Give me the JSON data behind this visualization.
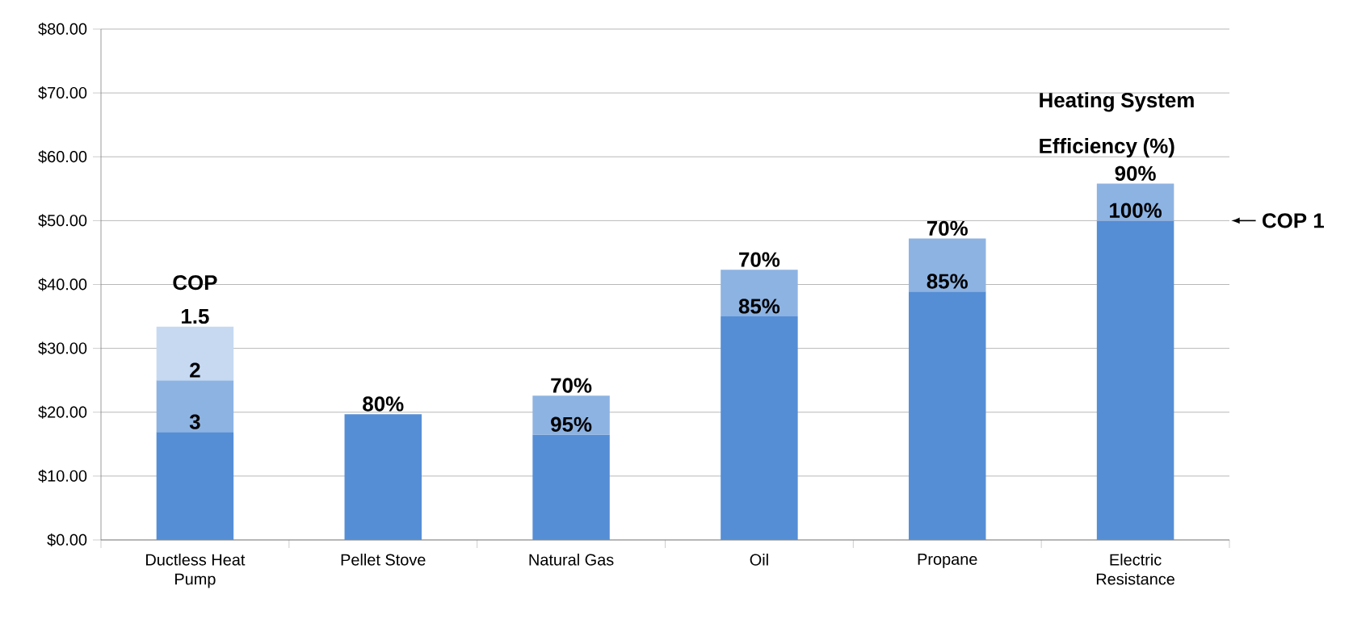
{
  "chart_data": {
    "type": "bar",
    "stacked": true,
    "categories": [
      "Ductless Heat Pump",
      "Pellet Stove",
      "Natural Gas",
      "Oil",
      "Propane",
      "Electric Resistance"
    ],
    "series": [
      {
        "color": "#558ed5",
        "values": [
          16.9,
          19.7,
          16.5,
          35.0,
          38.9,
          50.0
        ]
      },
      {
        "color": "#8db3e2",
        "values": [
          8.1,
          null,
          6.1,
          7.3,
          8.3,
          5.8
        ]
      },
      {
        "color": "#c6d9f1",
        "values": [
          8.4,
          null,
          null,
          null,
          null,
          null
        ]
      }
    ],
    "ylim": [
      0,
      80
    ],
    "yticks": [
      {
        "value": 0,
        "label": "$0.00"
      },
      {
        "value": 10,
        "label": "$10.00"
      },
      {
        "value": 20,
        "label": "$20.00"
      },
      {
        "value": 30,
        "label": "$30.00"
      },
      {
        "value": 40,
        "label": "$40.00"
      },
      {
        "value": 50,
        "label": "$50.00"
      },
      {
        "value": 60,
        "label": "$60.00"
      },
      {
        "value": 70,
        "label": "$70.00"
      },
      {
        "value": 80,
        "label": "$80.00"
      }
    ],
    "grid": "y",
    "annotations": [
      "COP",
      "Heating System Efficiency (%)",
      "COP 1",
      {
        "text": "3",
        "x": "Ductless Heat Pump",
        "y": 16.9
      },
      {
        "text": "2",
        "x": "Ductless Heat Pump",
        "y": 25.0
      },
      {
        "text": "1.5",
        "x": "Ductless Heat Pump",
        "y": 33.4
      },
      {
        "text": "80%",
        "x": "Pellet Stove",
        "y": 19.7
      },
      {
        "text": "95%",
        "x": "Natural Gas",
        "y": 16.5
      },
      {
        "text": "70%",
        "x": "Natural Gas",
        "y": 22.6
      },
      {
        "text": "85%",
        "x": "Oil",
        "y": 35.0
      },
      {
        "text": "70%",
        "x": "Oil",
        "y": 42.3
      },
      {
        "text": "85%",
        "x": "Propane",
        "y": 38.9
      },
      {
        "text": "70%",
        "x": "Propane",
        "y": 47.2
      },
      {
        "text": "100%",
        "x": "Electric Resistance",
        "y": 50.0
      },
      {
        "text": "90%",
        "x": "Electric Resistance",
        "y": 55.8
      }
    ]
  }
}
